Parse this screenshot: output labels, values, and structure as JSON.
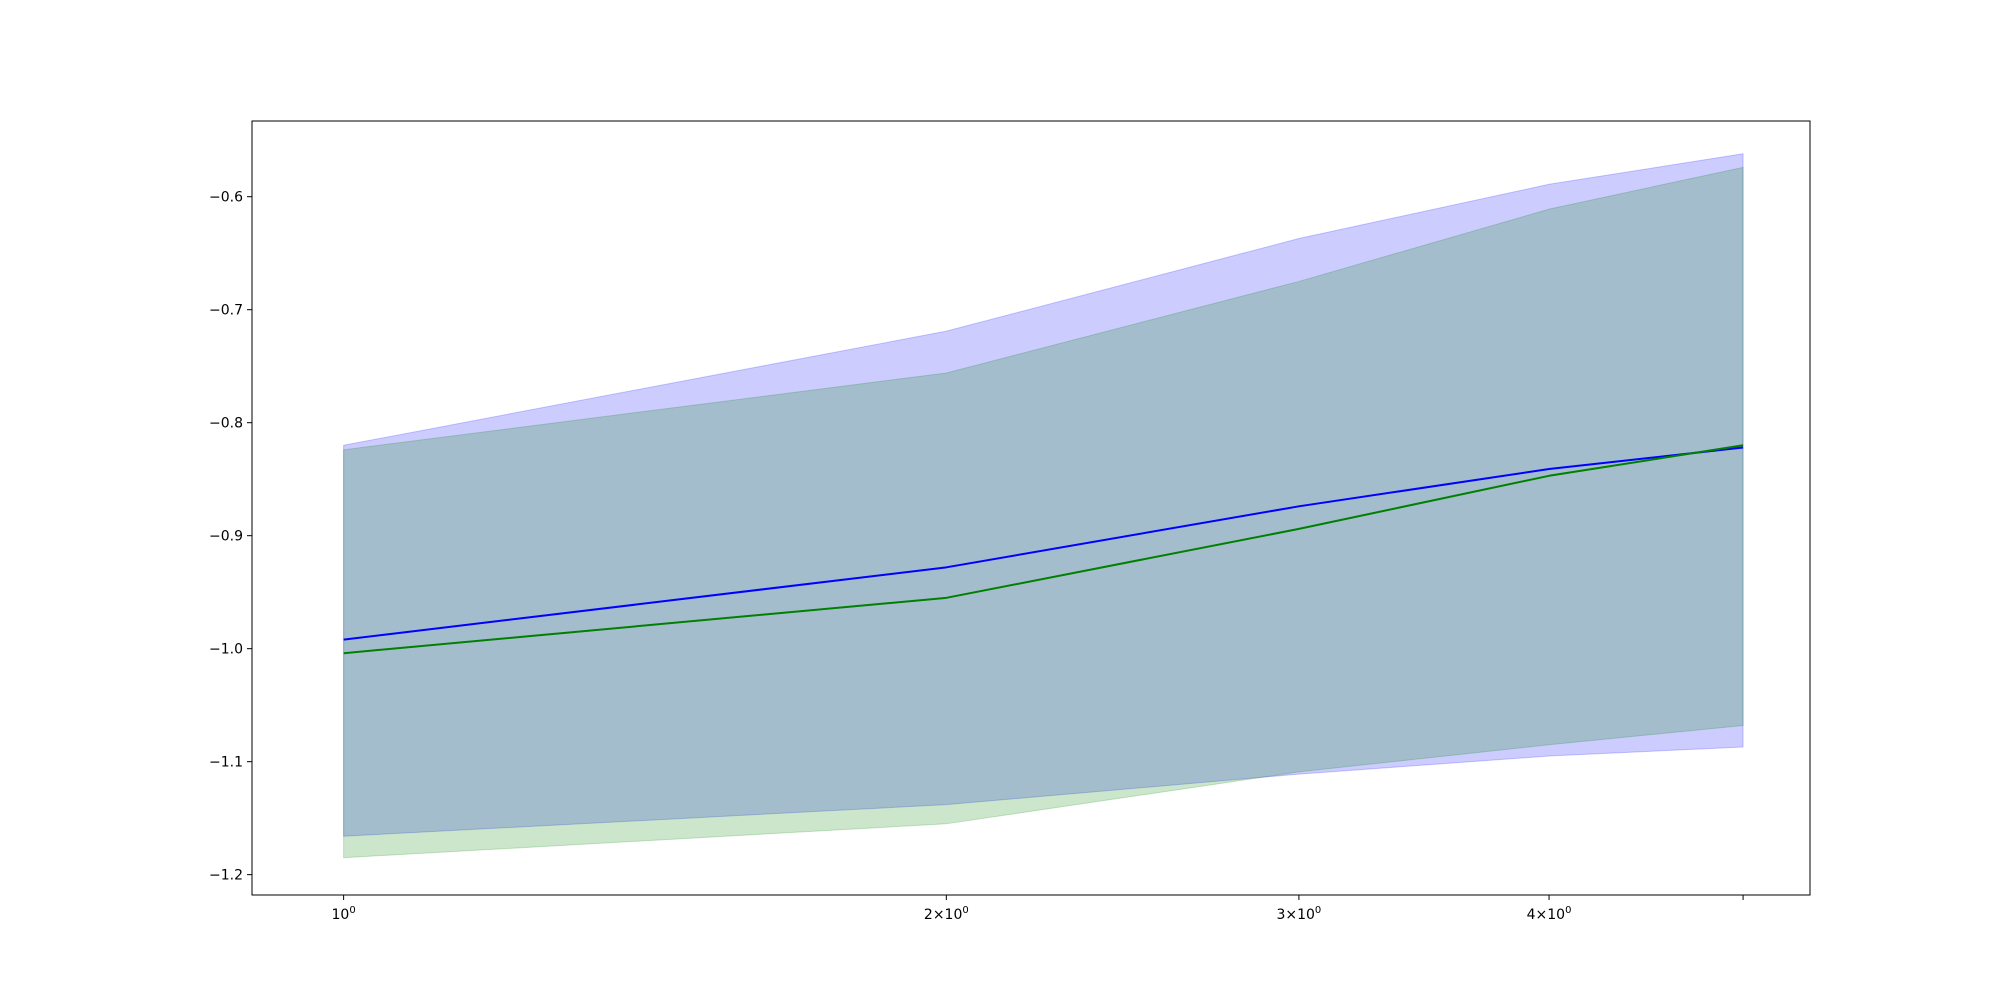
{
  "chart_data": {
    "type": "line",
    "x": [
      1,
      2,
      3,
      4,
      5
    ],
    "xscale": "log",
    "xlim": [
      0.9,
      5.4
    ],
    "ylim": [
      -1.218,
      -0.533
    ],
    "grid": false,
    "x_ticks": [
      {
        "value": 1,
        "label": "10⁰",
        "base": "10",
        "exp": "0"
      },
      {
        "value": 2,
        "label": "2×10⁰",
        "base": "2×10",
        "exp": "0"
      },
      {
        "value": 3,
        "label": "3×10⁰",
        "base": "3×10",
        "exp": "0"
      },
      {
        "value": 4,
        "label": "4×10⁰",
        "base": "4×10",
        "exp": "0"
      },
      {
        "value": 5,
        "label": "",
        "base": "",
        "exp": ""
      }
    ],
    "y_ticks": [
      {
        "value": -0.6,
        "label": "−0.6"
      },
      {
        "value": -0.7,
        "label": "−0.7"
      },
      {
        "value": -0.8,
        "label": "−0.8"
      },
      {
        "value": -0.9,
        "label": "−0.9"
      },
      {
        "value": -1.0,
        "label": "−1.0"
      },
      {
        "value": -1.1,
        "label": "−1.1"
      },
      {
        "value": -1.2,
        "label": "−1.2"
      }
    ],
    "series": [
      {
        "color": "#0000ff",
        "band_color": "#0000ff",
        "band_opacity": 0.2,
        "values": [
          -0.992,
          -0.928,
          -0.874,
          -0.841,
          -0.822
        ],
        "lower": [
          -1.166,
          -1.138,
          -1.111,
          -1.095,
          -1.087
        ],
        "upper": [
          -0.82,
          -0.719,
          -0.637,
          -0.589,
          -0.562
        ]
      },
      {
        "color": "#008000",
        "band_color": "#008000",
        "band_opacity": 0.2,
        "values": [
          -1.004,
          -0.955,
          -0.894,
          -0.847,
          -0.82
        ],
        "lower": [
          -1.185,
          -1.155,
          -1.109,
          -1.085,
          -1.068
        ],
        "upper": [
          -0.824,
          -0.756,
          -0.675,
          -0.611,
          -0.574
        ]
      }
    ]
  }
}
